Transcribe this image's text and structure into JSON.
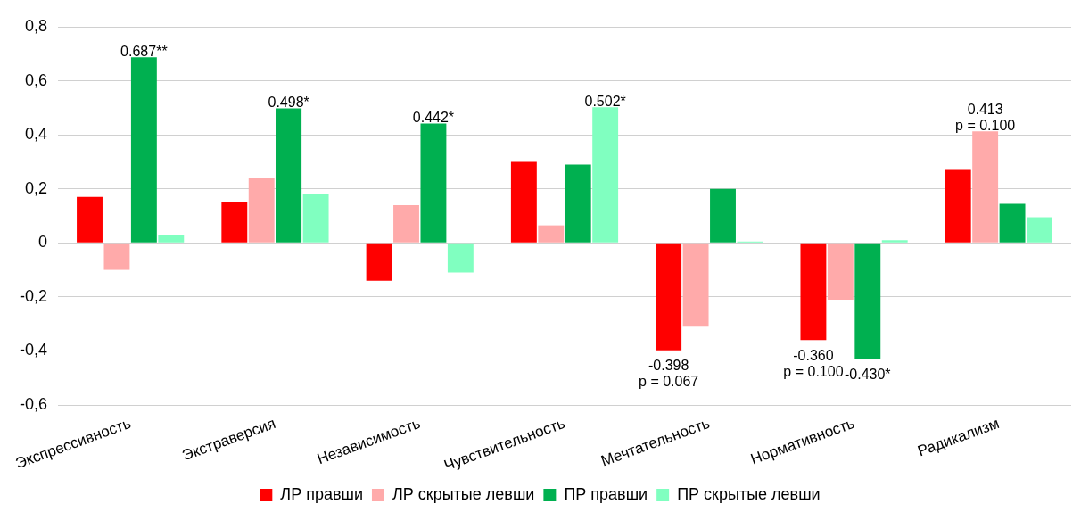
{
  "chart_data": {
    "type": "bar",
    "categories": [
      "Экспрессивность",
      "Экстраверсия",
      "Независимость",
      "Чувствительность",
      "Мечтательность",
      "Нормативность",
      "Радикализм"
    ],
    "series": [
      {
        "name": "ЛР правши",
        "color": "#ff0000",
        "values": [
          0.17,
          0.15,
          -0.14,
          0.3,
          -0.398,
          -0.36,
          0.27
        ],
        "value_labels": [
          null,
          null,
          null,
          null,
          "-0.398\np = 0.067",
          "-0.360\np = 0.100",
          null
        ]
      },
      {
        "name": "ЛР скрытые левши",
        "color": "#ffaaaa",
        "values": [
          -0.1,
          0.24,
          0.14,
          0.065,
          -0.31,
          -0.21,
          0.413
        ],
        "value_labels": [
          null,
          null,
          null,
          null,
          null,
          null,
          "0.413\np = 0.100"
        ]
      },
      {
        "name": "ПР правши",
        "color": "#00b050",
        "values": [
          0.687,
          0.498,
          0.442,
          0.29,
          0.2,
          -0.43,
          0.145
        ],
        "value_labels": [
          "0.687**",
          "0.498*",
          "0.442*",
          null,
          null,
          "-0.430*",
          null
        ]
      },
      {
        "name": "ПР скрытые левши",
        "color": "#80ffc0",
        "values": [
          0.03,
          0.18,
          -0.11,
          0.502,
          0.005,
          0.01,
          0.095
        ],
        "value_labels": [
          null,
          null,
          null,
          "0.502*",
          null,
          null,
          null
        ]
      }
    ],
    "ylim": [
      -0.6,
      0.8
    ],
    "yticks": [
      {
        "value": -0.6,
        "label": "-0,6"
      },
      {
        "value": -0.4,
        "label": "-0,4"
      },
      {
        "value": -0.2,
        "label": "-0,2"
      },
      0,
      {
        "value": 0.2,
        "label": "0,2"
      },
      {
        "value": 0.4,
        "label": "0,4"
      },
      {
        "value": 0.6,
        "label": "0,6"
      },
      {
        "value": 0.8,
        "label": "0,8"
      }
    ],
    "grid": "y",
    "legend": "bottom"
  }
}
